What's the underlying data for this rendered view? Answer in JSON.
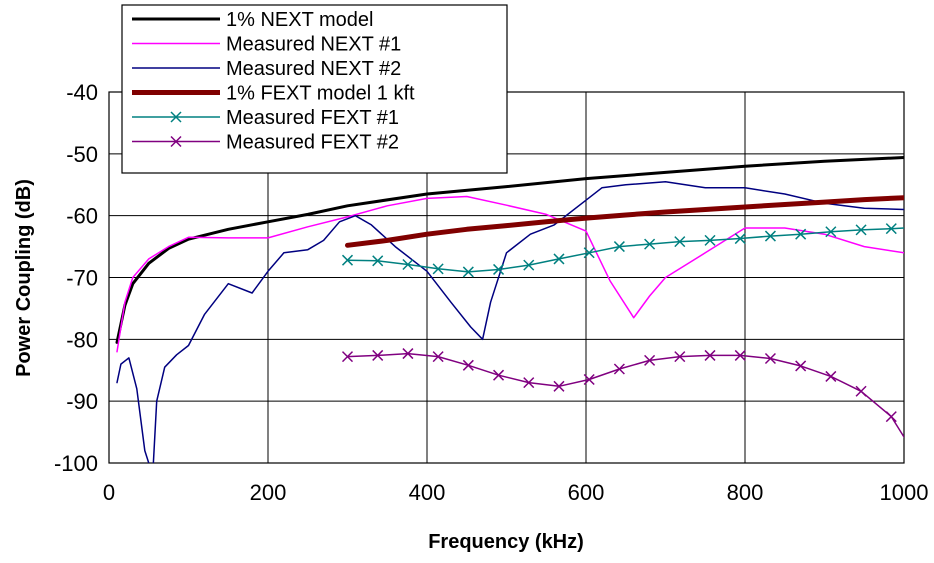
{
  "chart_data": {
    "type": "line",
    "xlabel": "Frequency (kHz)",
    "ylabel": "Power Coupling (dB)",
    "xlim": [
      0,
      1000
    ],
    "ylim": [
      -100,
      -40
    ],
    "x_ticks": [
      "0",
      "200",
      "400",
      "600",
      "800",
      "1000"
    ],
    "y_ticks": [
      "-40",
      "-50",
      "-60",
      "-70",
      "-80",
      "-90",
      "-100"
    ],
    "grid": true,
    "legend_position": "top-left",
    "series": [
      {
        "name": "1% NEXT model",
        "color": "#000000",
        "x": [
          10,
          20,
          30,
          50,
          75,
          100,
          150,
          200,
          250,
          300,
          400,
          500,
          600,
          700,
          800,
          900,
          1000
        ],
        "y": [
          -80.5,
          -74.5,
          -71,
          -67.7,
          -65.3,
          -63.8,
          -62.2,
          -61,
          -59.8,
          -58.4,
          -56.5,
          -55.3,
          -54,
          -53,
          -52,
          -51.2,
          -50.6
        ]
      },
      {
        "name": "Measured NEXT #1",
        "color": "#ff00ff",
        "x": [
          10,
          20,
          30,
          50,
          75,
          100,
          150,
          200,
          250,
          300,
          350,
          400,
          450,
          500,
          550,
          600,
          630,
          660,
          680,
          700,
          750,
          800,
          850,
          900,
          950,
          1000
        ],
        "y": [
          -82,
          -74,
          -70,
          -67,
          -65,
          -63.5,
          -63.6,
          -63.6,
          -61.8,
          -60.2,
          -58.4,
          -57.2,
          -56.9,
          -58.3,
          -59.8,
          -62.5,
          -70.5,
          -76.5,
          -73,
          -70,
          -66,
          -62,
          -62,
          -63,
          -65,
          -66
        ]
      },
      {
        "name": "Measured NEXT #2",
        "color": "#000080",
        "x": [
          10,
          15,
          25,
          35,
          45,
          55,
          60,
          70,
          85,
          100,
          120,
          150,
          180,
          200,
          220,
          250,
          270,
          290,
          310,
          330,
          360,
          400,
          430,
          455,
          470,
          480,
          500,
          530,
          560,
          600,
          620,
          650,
          700,
          750,
          800,
          850,
          900,
          950,
          1000
        ],
        "y": [
          -87,
          -84,
          -83,
          -88,
          -98,
          -102,
          -90,
          -84.5,
          -82.5,
          -81,
          -76,
          -71,
          -72.5,
          -69,
          -66,
          -65.5,
          -64,
          -61,
          -60,
          -61.5,
          -65,
          -69,
          -74,
          -78,
          -80,
          -74,
          -66,
          -63,
          -61.5,
          -57.5,
          -55.5,
          -55,
          -54.5,
          -55.5,
          -55.5,
          -56.5,
          -58,
          -58.8,
          -59
        ]
      },
      {
        "name": "1% FEXT model 1 kft",
        "color": "#800000",
        "x": [
          300,
          350,
          400,
          450,
          500,
          550,
          600,
          650,
          700,
          750,
          800,
          850,
          900,
          950,
          1000
        ],
        "y": [
          -64.8,
          -64,
          -63,
          -62.2,
          -61.6,
          -61,
          -60.4,
          -59.9,
          -59.4,
          -59,
          -58.6,
          -58.2,
          -57.8,
          -57.4,
          -57.1
        ]
      },
      {
        "name": "Measured FEXT #1",
        "color": "#008080",
        "x": [
          300,
          338,
          376,
          414,
          452,
          490,
          528,
          566,
          604,
          642,
          680,
          718,
          756,
          794,
          832,
          870,
          908,
          946,
          984,
          1000
        ],
        "y": [
          -67.2,
          -67.3,
          -67.9,
          -68.6,
          -69.1,
          -68.7,
          -68,
          -67,
          -66,
          -65,
          -64.6,
          -64.2,
          -64,
          -63.7,
          -63.3,
          -63,
          -62.6,
          -62.3,
          -62.1,
          -62
        ]
      },
      {
        "name": "Measured FEXT #2",
        "color": "#800080",
        "x": [
          300,
          338,
          376,
          414,
          452,
          490,
          528,
          566,
          604,
          642,
          680,
          718,
          756,
          794,
          832,
          870,
          908,
          946,
          984,
          1000
        ],
        "y": [
          -82.8,
          -82.6,
          -82.3,
          -82.8,
          -84.2,
          -85.8,
          -87,
          -87.6,
          -86.5,
          -84.8,
          -83.4,
          -82.8,
          -82.6,
          -82.6,
          -83.1,
          -84.3,
          -86,
          -88.4,
          -92.5,
          -95.8
        ]
      }
    ]
  }
}
